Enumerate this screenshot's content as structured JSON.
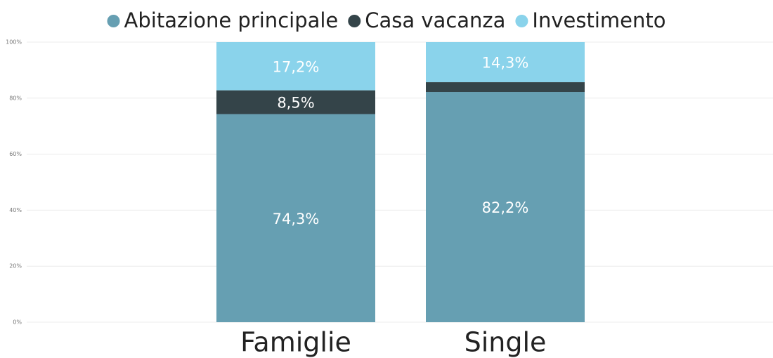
{
  "chart_data": {
    "type": "stacked_bar",
    "categories": [
      "Famiglie",
      "Single"
    ],
    "series": [
      {
        "name": "Abitazione principale",
        "color": "#669fb2",
        "values": [
          74.3,
          82.2
        ],
        "value_labels": [
          "74,3%",
          "82,2%"
        ]
      },
      {
        "name": "Casa vacanza",
        "color": "#344449",
        "values": [
          8.5,
          3.5
        ],
        "value_labels": [
          "8,5%",
          null
        ]
      },
      {
        "name": "Investimento",
        "color": "#8ad3eb",
        "values": [
          17.2,
          14.3
        ],
        "value_labels": [
          "17,2%",
          "14,3%"
        ]
      }
    ],
    "ylim": [
      0,
      100
    ],
    "yticks": [
      {
        "value": 0,
        "label": "0%"
      },
      {
        "value": 20,
        "label": "20%"
      },
      {
        "value": 40,
        "label": "40%"
      },
      {
        "value": 60,
        "label": "60%"
      },
      {
        "value": 80,
        "label": "80%"
      },
      {
        "value": 100,
        "label": "100%"
      }
    ],
    "grid": true,
    "legend": "top"
  }
}
